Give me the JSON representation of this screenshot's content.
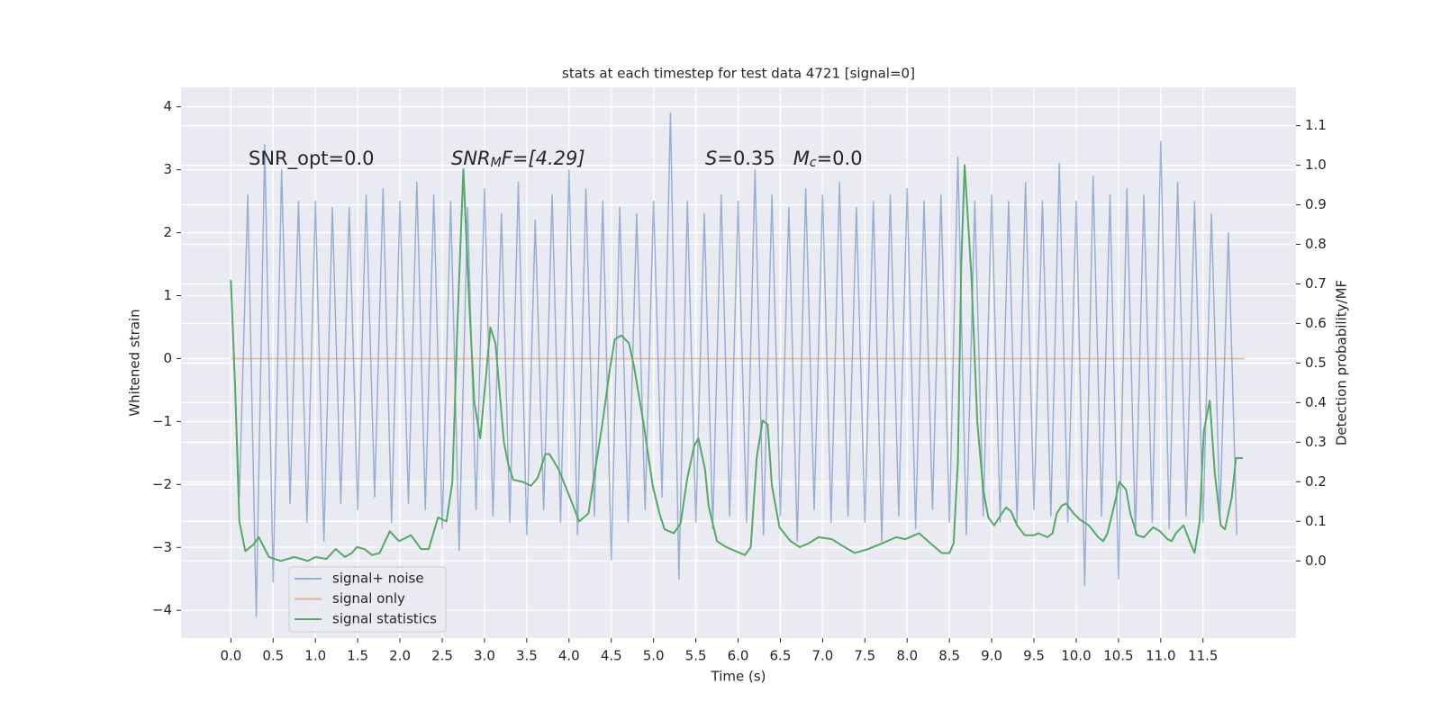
{
  "chart_data": {
    "type": "line",
    "title": "stats at each timestep for test data 4721 [signal=0]",
    "xlabel": "Time (s)",
    "ylabel": "Whitened strain",
    "y2label": "Detection probability/MF",
    "xlim": [
      -0.59,
      12.6
    ],
    "ylim": [
      -4.44,
      4.31
    ],
    "y2lim": [
      -0.195,
      1.197
    ],
    "xticks": [
      {
        "value": 0,
        "label": "0.0"
      },
      0.5,
      {
        "value": 1,
        "label": "1.0"
      },
      1.5,
      {
        "value": 2,
        "label": "2.0"
      },
      2.5,
      {
        "value": 3,
        "label": "3.0"
      },
      3.5,
      {
        "value": 4,
        "label": "4.0"
      },
      4.5,
      {
        "value": 5,
        "label": "5.0"
      },
      5.5,
      {
        "value": 6,
        "label": "6.0"
      },
      6.5,
      {
        "value": 7,
        "label": "7.0"
      },
      7.5,
      {
        "value": 8,
        "label": "8.0"
      },
      8.5,
      {
        "value": 9,
        "label": "9.0"
      },
      9.5,
      {
        "value": 10,
        "label": "10.0"
      },
      10.5,
      {
        "value": 11,
        "label": "11.0"
      },
      11.5
    ],
    "yticks": [
      {
        "value": -4,
        "label": "−4"
      },
      {
        "value": -3,
        "label": "−3"
      },
      {
        "value": -2,
        "label": "−2"
      },
      {
        "value": -1,
        "label": "−1"
      },
      0,
      1,
      2,
      3,
      4
    ],
    "y2ticks": [
      {
        "value": 0,
        "label": "0.0"
      },
      0.1,
      0.2,
      0.3,
      0.4,
      0.5,
      0.6,
      0.7,
      0.8,
      0.9,
      {
        "value": 1,
        "label": "1.0"
      },
      1.1
    ],
    "grid": true,
    "legend": "lower left",
    "annotations": [
      {
        "parts": [
          {
            "text": "SNR_opt=0.0",
            "style": "normal",
            "sub": false
          }
        ]
      },
      {
        "parts": [
          {
            "text": "SNR",
            "style": "italic",
            "sub": false
          },
          {
            "text": "M",
            "style": "italic",
            "sub": true
          },
          {
            "text": "F=[4.29]",
            "style": "italic",
            "sub": false
          }
        ]
      },
      {
        "parts": [
          {
            "text": "S",
            "style": "italic",
            "sub": false
          },
          {
            "text": "=0.35   ",
            "style": "normal",
            "sub": false
          },
          {
            "text": "M",
            "style": "italic",
            "sub": false
          },
          {
            "text": "c",
            "style": "italic",
            "sub": true
          },
          {
            "text": "=0.0",
            "style": "normal",
            "sub": false
          }
        ]
      }
    ],
    "series": [
      {
        "name": "signal+ noise",
        "color": "#4c72b0",
        "opacity": 0.5,
        "x": [
          0.0,
          0.1,
          0.2,
          0.3,
          0.4,
          0.5,
          0.6,
          0.7,
          0.8,
          0.9,
          1.0,
          1.1,
          1.2,
          1.3,
          1.4,
          1.5,
          1.6,
          1.7,
          1.8,
          1.9,
          2.0,
          2.1,
          2.2,
          2.3,
          2.4,
          2.5,
          2.6,
          2.7,
          2.8,
          2.9,
          3.0,
          3.1,
          3.2,
          3.3,
          3.4,
          3.5,
          3.6,
          3.7,
          3.8,
          3.9,
          4.0,
          4.1,
          4.2,
          4.3,
          4.4,
          4.5,
          4.6,
          4.7,
          4.8,
          4.9,
          5.0,
          5.1,
          5.2,
          5.3,
          5.4,
          5.5,
          5.6,
          5.7,
          5.8,
          5.9,
          6.0,
          6.1,
          6.2,
          6.3,
          6.4,
          6.5,
          6.6,
          6.7,
          6.8,
          6.9,
          7.0,
          7.1,
          7.2,
          7.3,
          7.4,
          7.5,
          7.6,
          7.7,
          7.8,
          7.9,
          8.0,
          8.1,
          8.2,
          8.3,
          8.4,
          8.5,
          8.6,
          8.7,
          8.8,
          8.9,
          9.0,
          9.1,
          9.2,
          9.3,
          9.4,
          9.5,
          9.6,
          9.7,
          9.8,
          9.9,
          10.0,
          10.1,
          10.2,
          10.3,
          10.4,
          10.5,
          10.6,
          10.7,
          10.8,
          10.9,
          11.0,
          11.1,
          11.2,
          11.3,
          11.4,
          11.5,
          11.6,
          11.7,
          11.8,
          11.9
        ],
        "values": [
          1.2,
          -2.2,
          2.6,
          -4.1,
          3.4,
          -3.55,
          3.0,
          -2.3,
          2.5,
          -2.6,
          2.5,
          -2.9,
          2.4,
          -2.3,
          2.4,
          -2.4,
          2.6,
          -2.2,
          2.7,
          -2.6,
          2.5,
          -2.3,
          2.8,
          -2.4,
          2.6,
          -2.7,
          2.5,
          -3.05,
          2.4,
          -2.4,
          2.7,
          -2.5,
          2.3,
          -2.6,
          2.8,
          -2.8,
          2.2,
          -2.4,
          2.6,
          -2.6,
          3.0,
          -2.8,
          2.7,
          -2.5,
          2.5,
          -3.2,
          2.4,
          -2.6,
          2.3,
          -2.4,
          2.5,
          -2.2,
          3.9,
          -3.5,
          2.5,
          -2.6,
          2.3,
          -2.7,
          2.6,
          -2.5,
          2.5,
          -2.6,
          3.0,
          -2.8,
          2.6,
          -2.5,
          2.4,
          -2.9,
          2.7,
          -2.4,
          2.6,
          -2.6,
          2.8,
          -2.5,
          2.4,
          -2.6,
          2.5,
          -2.9,
          2.6,
          -2.5,
          2.7,
          -2.7,
          2.5,
          -2.4,
          2.6,
          -2.6,
          3.2,
          -2.8,
          2.5,
          -2.5,
          2.6,
          -2.6,
          2.5,
          -2.6,
          2.8,
          -2.4,
          2.5,
          -2.5,
          3.1,
          -2.6,
          2.5,
          -3.6,
          2.9,
          -2.5,
          2.6,
          -3.5,
          2.7,
          -2.8,
          2.6,
          -2.6,
          3.45,
          -2.7,
          2.8,
          -2.5,
          2.5,
          -2.6,
          2.3,
          -2.5,
          2.0,
          -2.8
        ]
      },
      {
        "name": "signal only",
        "color": "#dd8452",
        "opacity": 0.6,
        "x": [
          0.0,
          11.99
        ],
        "values": [
          0,
          0
        ]
      },
      {
        "name": "signal statistics",
        "color": "#55a868",
        "opacity": 1,
        "axis": "y2",
        "x": [
          0.0,
          0.05,
          0.1,
          0.17,
          0.26,
          0.33,
          0.45,
          0.59,
          0.75,
          0.91,
          1.0,
          1.13,
          1.24,
          1.35,
          1.43,
          1.49,
          1.58,
          1.67,
          1.76,
          1.88,
          1.99,
          2.13,
          2.25,
          2.34,
          2.45,
          2.55,
          2.62,
          2.68,
          2.75,
          2.82,
          2.88,
          2.95,
          3.07,
          3.13,
          3.23,
          3.28,
          3.34,
          3.45,
          3.55,
          3.63,
          3.72,
          3.77,
          3.88,
          4.03,
          4.12,
          4.23,
          4.28,
          4.39,
          4.48,
          4.54,
          4.62,
          4.71,
          4.77,
          4.88,
          4.99,
          5.07,
          5.13,
          5.24,
          5.32,
          5.4,
          5.48,
          5.53,
          5.61,
          5.65,
          5.75,
          5.86,
          5.97,
          6.08,
          6.15,
          6.22,
          6.29,
          6.35,
          6.4,
          6.49,
          6.62,
          6.73,
          6.84,
          6.95,
          7.11,
          7.22,
          7.38,
          7.54,
          7.71,
          7.87,
          7.98,
          8.14,
          8.3,
          8.41,
          8.5,
          8.55,
          8.6,
          8.64,
          8.68,
          8.76,
          8.83,
          8.9,
          8.96,
          9.03,
          9.12,
          9.17,
          9.23,
          9.3,
          9.39,
          9.5,
          9.55,
          9.66,
          9.72,
          9.77,
          9.83,
          9.88,
          9.97,
          10.04,
          10.15,
          10.26,
          10.32,
          10.37,
          10.46,
          10.51,
          10.59,
          10.64,
          10.72,
          10.8,
          10.91,
          10.99,
          11.08,
          11.13,
          11.18,
          11.27,
          11.36,
          11.4,
          11.46,
          11.51,
          11.58,
          11.64,
          11.71,
          11.76,
          11.84,
          11.89,
          11.97
        ],
        "values": [
          0.71,
          0.44,
          0.1,
          0.025,
          0.04,
          0.06,
          0.01,
          0.0,
          0.01,
          0.0,
          0.01,
          0.005,
          0.03,
          0.01,
          0.02,
          0.035,
          0.03,
          0.015,
          0.02,
          0.075,
          0.05,
          0.065,
          0.03,
          0.03,
          0.11,
          0.1,
          0.2,
          0.6,
          0.99,
          0.65,
          0.4,
          0.31,
          0.59,
          0.55,
          0.3,
          0.245,
          0.205,
          0.2,
          0.19,
          0.21,
          0.27,
          0.27,
          0.23,
          0.15,
          0.1,
          0.12,
          0.19,
          0.34,
          0.48,
          0.56,
          0.57,
          0.55,
          0.49,
          0.35,
          0.19,
          0.12,
          0.08,
          0.07,
          0.095,
          0.21,
          0.29,
          0.31,
          0.23,
          0.14,
          0.05,
          0.035,
          0.025,
          0.015,
          0.035,
          0.26,
          0.355,
          0.345,
          0.19,
          0.085,
          0.05,
          0.035,
          0.045,
          0.06,
          0.055,
          0.04,
          0.02,
          0.03,
          0.045,
          0.06,
          0.055,
          0.07,
          0.04,
          0.02,
          0.02,
          0.045,
          0.25,
          0.75,
          1.0,
          0.72,
          0.35,
          0.18,
          0.11,
          0.09,
          0.12,
          0.135,
          0.125,
          0.09,
          0.065,
          0.065,
          0.07,
          0.06,
          0.07,
          0.12,
          0.14,
          0.145,
          0.12,
          0.105,
          0.09,
          0.06,
          0.05,
          0.07,
          0.15,
          0.2,
          0.18,
          0.12,
          0.065,
          0.06,
          0.085,
          0.075,
          0.055,
          0.05,
          0.07,
          0.09,
          0.04,
          0.02,
          0.1,
          0.33,
          0.405,
          0.22,
          0.09,
          0.08,
          0.16,
          0.26,
          0.26
        ]
      }
    ]
  }
}
